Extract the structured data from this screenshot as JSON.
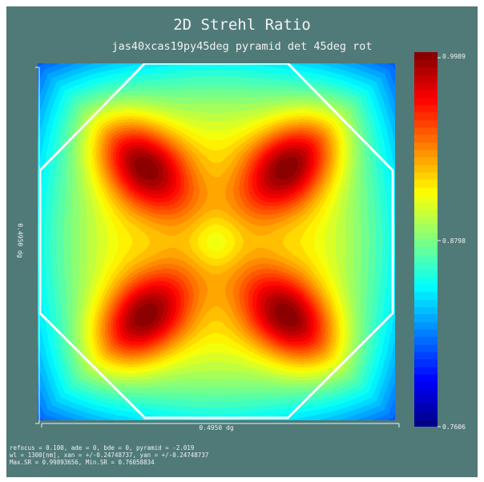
{
  "chart_data": {
    "type": "heatmap",
    "title": "2D Strehl Ratio",
    "subtitle": "jas40xcas19py45deg pyramid det 45deg rot",
    "xlabel": "0.4950 dg",
    "ylabel": "0.4950 dg",
    "field_of_view_deg": 0.495,
    "colorbar": {
      "max_label": "0.9989",
      "mid_label": "0.8798",
      "min_label": "0.7606",
      "max": 0.9989,
      "mid": 0.8798,
      "min": 0.7606,
      "colormap": "jet"
    },
    "overlay_shape": "octagon",
    "overlay_color": "#ffffff",
    "grid": false,
    "annotations": {
      "line1": "refocus = 0.100, ade = 0, bde = 0, pyramid = -2.019",
      "line2": "wl = 1300[nm], xan = +/-0.24748737, yan = +/-0.24748737",
      "line3": "Max.SR = 0.99893656, Min.SR = 0.76058834"
    },
    "stats": {
      "max_sr": 0.99893656,
      "min_sr": 0.76058834,
      "refocus": 0.1,
      "ade": 0,
      "bde": 0,
      "pyramid": -2.019,
      "wavelength_nm": 1300,
      "xan": 0.24748737,
      "yan": 0.24748737
    }
  }
}
